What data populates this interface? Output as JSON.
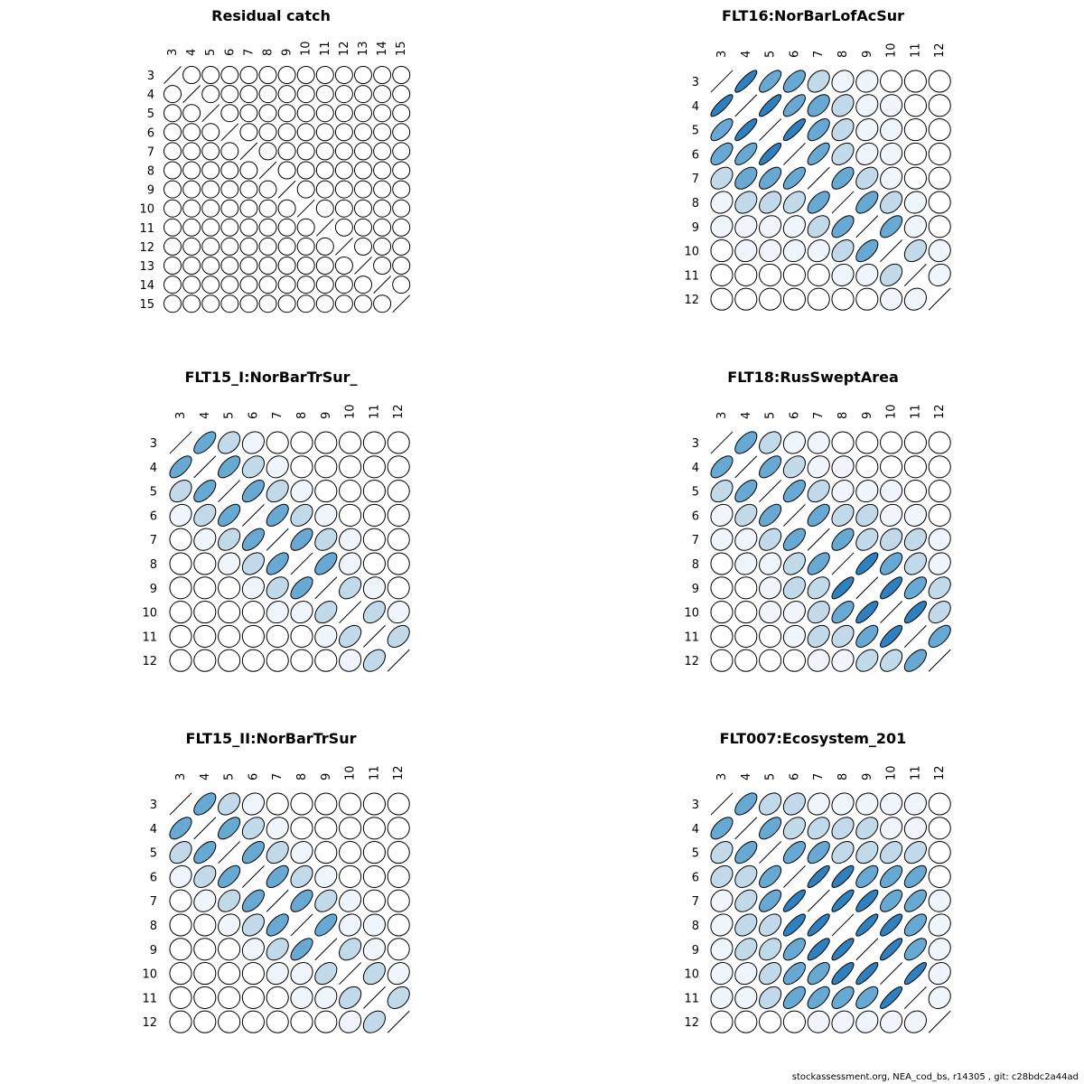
{
  "chart_data": [
    {
      "type": "heatmap",
      "title": "Residual catch",
      "labels": [
        "3",
        "4",
        "5",
        "6",
        "7",
        "8",
        "9",
        "10",
        "11",
        "12",
        "13",
        "14",
        "15"
      ],
      "matrix": [
        [
          1,
          0,
          0,
          0,
          0,
          0,
          0,
          0,
          0,
          0,
          0,
          0,
          0
        ],
        [
          0,
          1,
          0,
          0,
          0,
          0,
          0,
          0,
          0,
          0,
          0,
          0,
          0
        ],
        [
          0,
          0,
          1,
          0,
          0,
          0,
          0,
          0,
          0,
          0,
          0,
          0,
          0
        ],
        [
          0,
          0,
          0,
          1,
          0,
          0,
          0,
          0,
          0,
          0,
          0,
          0,
          0
        ],
        [
          0,
          0,
          0,
          0,
          1,
          0,
          0,
          0,
          0,
          0,
          0,
          0,
          0
        ],
        [
          0,
          0,
          0,
          0,
          0,
          1,
          0,
          0,
          0,
          0,
          0,
          0,
          0
        ],
        [
          0,
          0,
          0,
          0,
          0,
          0,
          1,
          0,
          0,
          0,
          0,
          0,
          0
        ],
        [
          0,
          0,
          0,
          0,
          0,
          0,
          0,
          1,
          0,
          0,
          0,
          0,
          0
        ],
        [
          0,
          0,
          0,
          0,
          0,
          0,
          0,
          0,
          1,
          0,
          0,
          0,
          0
        ],
        [
          0,
          0,
          0,
          0,
          0,
          0,
          0,
          0,
          0,
          1,
          0,
          0,
          0
        ],
        [
          0,
          0,
          0,
          0,
          0,
          0,
          0,
          0,
          0,
          0,
          1,
          0,
          0
        ],
        [
          0,
          0,
          0,
          0,
          0,
          0,
          0,
          0,
          0,
          0,
          0,
          1,
          0
        ],
        [
          0,
          0,
          0,
          0,
          0,
          0,
          0,
          0,
          0,
          0,
          0,
          0,
          1
        ]
      ]
    },
    {
      "type": "heatmap",
      "title": "FLT16:NorBarLofAcSur",
      "labels": [
        "3",
        "4",
        "5",
        "6",
        "7",
        "8",
        "9",
        "10",
        "11",
        "12"
      ],
      "matrix": [
        [
          1,
          0.85,
          0.7,
          0.6,
          0.35,
          0.15,
          0.1,
          0,
          0,
          0
        ],
        [
          0.85,
          1,
          0.85,
          0.7,
          0.5,
          0.3,
          0.15,
          0.05,
          0,
          0
        ],
        [
          0.7,
          0.85,
          1,
          0.85,
          0.6,
          0.35,
          0.15,
          0.1,
          0,
          0
        ],
        [
          0.6,
          0.7,
          0.85,
          1,
          0.7,
          0.4,
          0.2,
          0.1,
          0,
          0
        ],
        [
          0.35,
          0.5,
          0.6,
          0.7,
          1,
          0.6,
          0.35,
          0.15,
          0,
          0
        ],
        [
          0.15,
          0.3,
          0.35,
          0.4,
          0.6,
          1,
          0.6,
          0.35,
          0.1,
          0
        ],
        [
          0.1,
          0.15,
          0.15,
          0.2,
          0.35,
          0.6,
          1,
          0.6,
          0.15,
          0
        ],
        [
          0,
          0.05,
          0.1,
          0.1,
          0.15,
          0.35,
          0.6,
          1,
          0.35,
          0.05
        ],
        [
          0,
          0,
          0,
          0,
          0,
          0.1,
          0.15,
          0.35,
          1,
          0.15
        ],
        [
          0,
          0,
          0,
          0,
          0,
          0,
          0,
          0.05,
          0.15,
          1
        ]
      ]
    },
    {
      "type": "heatmap",
      "title": "FLT15_I:NorBarTrSur_",
      "labels": [
        "3",
        "4",
        "5",
        "6",
        "7",
        "8",
        "9",
        "10",
        "11",
        "12"
      ],
      "matrix": [
        [
          1,
          0.65,
          0.35,
          0.15,
          0,
          0,
          0,
          0,
          0,
          0
        ],
        [
          0.65,
          1,
          0.6,
          0.35,
          0.15,
          0,
          0,
          0,
          0,
          0
        ],
        [
          0.35,
          0.6,
          1,
          0.6,
          0.35,
          0.15,
          0,
          0,
          0,
          0
        ],
        [
          0.15,
          0.35,
          0.6,
          1,
          0.6,
          0.35,
          0.15,
          0,
          0,
          0
        ],
        [
          0,
          0.15,
          0.35,
          0.6,
          1,
          0.6,
          0.3,
          0.1,
          0,
          0
        ],
        [
          0,
          0,
          0.15,
          0.35,
          0.6,
          1,
          0.6,
          0.15,
          0,
          0
        ],
        [
          0,
          0,
          0,
          0.15,
          0.3,
          0.6,
          1,
          0.35,
          0.1,
          0
        ],
        [
          0,
          0,
          0,
          0,
          0.1,
          0.15,
          0.35,
          1,
          0.4,
          0.1
        ],
        [
          0,
          0,
          0,
          0,
          0,
          0,
          0.1,
          0.4,
          1,
          0.4
        ],
        [
          0,
          0,
          0,
          0,
          0,
          0,
          0,
          0.1,
          0.4,
          1
        ]
      ]
    },
    {
      "type": "heatmap",
      "title": "FLT18:RusSweptArea",
      "labels": [
        "3",
        "4",
        "5",
        "6",
        "7",
        "8",
        "9",
        "10",
        "11",
        "12"
      ],
      "matrix": [
        [
          1,
          0.6,
          0.35,
          0.15,
          0.1,
          0,
          0,
          0,
          0,
          0
        ],
        [
          0.6,
          1,
          0.6,
          0.35,
          0.15,
          0.1,
          0,
          0,
          0,
          0
        ],
        [
          0.35,
          0.6,
          1,
          0.6,
          0.35,
          0.15,
          0.1,
          0.05,
          0,
          0
        ],
        [
          0.15,
          0.35,
          0.6,
          1,
          0.6,
          0.35,
          0.3,
          0.15,
          0.1,
          0
        ],
        [
          0.1,
          0.15,
          0.35,
          0.6,
          1,
          0.6,
          0.35,
          0.3,
          0.3,
          0.1
        ],
        [
          0,
          0.1,
          0.15,
          0.35,
          0.6,
          1,
          0.8,
          0.6,
          0.35,
          0.15
        ],
        [
          0,
          0,
          0.1,
          0.3,
          0.35,
          0.8,
          1,
          0.8,
          0.6,
          0.35
        ],
        [
          0,
          0,
          0.05,
          0.15,
          0.3,
          0.6,
          0.8,
          1,
          0.8,
          0.4
        ],
        [
          0,
          0,
          0,
          0.1,
          0.3,
          0.35,
          0.6,
          0.8,
          1,
          0.6
        ],
        [
          0,
          0,
          0,
          0,
          0.1,
          0.15,
          0.35,
          0.4,
          0.6,
          1
        ]
      ]
    },
    {
      "type": "heatmap",
      "title": "FLT15_II:NorBarTrSur",
      "labels": [
        "3",
        "4",
        "5",
        "6",
        "7",
        "8",
        "9",
        "10",
        "11",
        "12"
      ],
      "matrix": [
        [
          1,
          0.6,
          0.35,
          0.15,
          0,
          0,
          0,
          0,
          0,
          0
        ],
        [
          0.6,
          1,
          0.6,
          0.35,
          0.15,
          0,
          0,
          0,
          0,
          0
        ],
        [
          0.35,
          0.6,
          1,
          0.6,
          0.35,
          0.15,
          0,
          0,
          0,
          0
        ],
        [
          0.15,
          0.35,
          0.6,
          1,
          0.6,
          0.35,
          0.15,
          0,
          0,
          0
        ],
        [
          0,
          0.15,
          0.35,
          0.6,
          1,
          0.6,
          0.35,
          0.15,
          0,
          0
        ],
        [
          0,
          0,
          0.15,
          0.35,
          0.6,
          1,
          0.65,
          0.15,
          0.05,
          0
        ],
        [
          0,
          0,
          0,
          0.15,
          0.35,
          0.65,
          1,
          0.35,
          0.15,
          0
        ],
        [
          0,
          0,
          0,
          0,
          0.15,
          0.15,
          0.35,
          1,
          0.35,
          0.15
        ],
        [
          0,
          0,
          0,
          0,
          0,
          0.05,
          0.15,
          0.35,
          1,
          0.35
        ],
        [
          0,
          0,
          0,
          0,
          0,
          0,
          0,
          0.15,
          0.35,
          1
        ]
      ]
    },
    {
      "type": "heatmap",
      "title": "FLT007:Ecosystem_201",
      "labels": [
        "3",
        "4",
        "5",
        "6",
        "7",
        "8",
        "9",
        "10",
        "11",
        "12"
      ],
      "matrix": [
        [
          1,
          0.6,
          0.35,
          0.3,
          0.15,
          0.15,
          0.1,
          0.1,
          0.1,
          0
        ],
        [
          0.6,
          1,
          0.6,
          0.35,
          0.35,
          0.35,
          0.35,
          0.15,
          0.1,
          0
        ],
        [
          0.35,
          0.6,
          1,
          0.6,
          0.6,
          0.4,
          0.35,
          0.35,
          0.35,
          0
        ],
        [
          0.3,
          0.35,
          0.6,
          1,
          0.85,
          0.8,
          0.6,
          0.6,
          0.6,
          0
        ],
        [
          0.15,
          0.35,
          0.6,
          0.85,
          1,
          0.85,
          0.8,
          0.6,
          0.6,
          0.05
        ],
        [
          0.15,
          0.35,
          0.4,
          0.8,
          0.85,
          1,
          0.85,
          0.8,
          0.6,
          0.15
        ],
        [
          0.1,
          0.35,
          0.35,
          0.6,
          0.8,
          0.85,
          1,
          0.85,
          0.6,
          0.15
        ],
        [
          0.1,
          0.15,
          0.35,
          0.6,
          0.6,
          0.8,
          0.85,
          1,
          0.85,
          0.15
        ],
        [
          0.1,
          0.1,
          0.35,
          0.6,
          0.6,
          0.6,
          0.6,
          0.85,
          1,
          0.15
        ],
        [
          0,
          0,
          0,
          0,
          0.05,
          0.15,
          0.15,
          0.15,
          0.15,
          1
        ]
      ]
    }
  ],
  "footer": "stockassessment.org, NEA_cod_bs, r14305 , git: c28bdc2a44ad",
  "colors": {
    "low": "#f0f4fc",
    "mid": "#c1d9e8",
    "high": "#68a9d3",
    "max": "#2f80bf"
  }
}
